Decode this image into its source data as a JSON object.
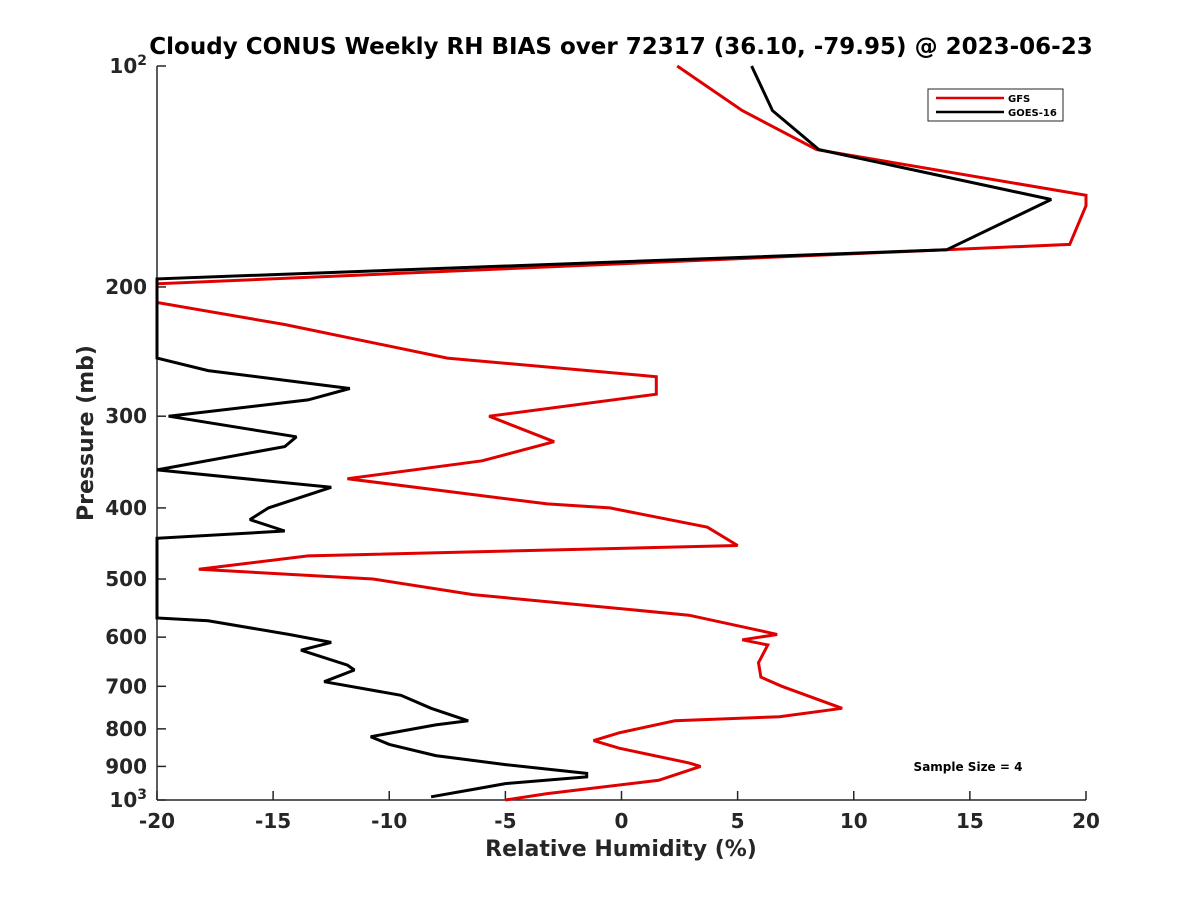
{
  "chart_data": {
    "type": "line",
    "title": "Cloudy CONUS Weekly RH BIAS over 72317 (36.10, -79.95) @ 2023-06-23",
    "xlabel": "Relative Humidity (%)",
    "ylabel": "Pressure (mb)",
    "xlim": [
      -20,
      20
    ],
    "ylim": [
      100,
      1000
    ],
    "y_scale": "log",
    "y_reversed": true,
    "grid": false,
    "x_ticks": [
      -20,
      -15,
      -10,
      -5,
      0,
      5,
      10,
      15,
      20
    ],
    "x_tick_labels": [
      "-20",
      "-15",
      "-10",
      "-5",
      "0",
      "5",
      "10",
      "15",
      "20"
    ],
    "y_ticks": [
      100,
      200,
      300,
      400,
      500,
      600,
      700,
      800,
      900,
      1000
    ],
    "y_tick_labels": [
      {
        "base": "10",
        "exp": "2"
      },
      {
        "base": "200",
        "exp": ""
      },
      {
        "base": "300",
        "exp": ""
      },
      {
        "base": "400",
        "exp": ""
      },
      {
        "base": "500",
        "exp": ""
      },
      {
        "base": "600",
        "exp": ""
      },
      {
        "base": "700",
        "exp": ""
      },
      {
        "base": "800",
        "exp": ""
      },
      {
        "base": "900",
        "exp": ""
      },
      {
        "base": "10",
        "exp": "3"
      }
    ],
    "legend_position": "top-right",
    "annotation": "Sample Size = 4",
    "series": [
      {
        "name": "GFS",
        "color": "#e00000",
        "points": [
          [
            2.4,
            100
          ],
          [
            5.2,
            115
          ],
          [
            8.4,
            130
          ],
          [
            20.0,
            150
          ],
          [
            20.0,
            155
          ],
          [
            19.3,
            175
          ],
          [
            -20.0,
            198
          ],
          [
            -20.0,
            210
          ],
          [
            -14.5,
            225
          ],
          [
            -7.5,
            250
          ],
          [
            1.5,
            265
          ],
          [
            1.5,
            280
          ],
          [
            -5.7,
            300
          ],
          [
            -2.9,
            325
          ],
          [
            -6.0,
            345
          ],
          [
            -11.8,
            365
          ],
          [
            -3.2,
            395
          ],
          [
            -0.5,
            400
          ],
          [
            3.7,
            425
          ],
          [
            5.0,
            450
          ],
          [
            -13.5,
            465
          ],
          [
            -18.2,
            485
          ],
          [
            -10.7,
            500
          ],
          [
            -6.4,
            525
          ],
          [
            2.9,
            560
          ],
          [
            6.2,
            590
          ],
          [
            6.7,
            595
          ],
          [
            5.2,
            605
          ],
          [
            6.3,
            615
          ],
          [
            5.9,
            650
          ],
          [
            6.0,
            680
          ],
          [
            6.9,
            700
          ],
          [
            9.5,
            750
          ],
          [
            6.8,
            770
          ],
          [
            2.3,
            780
          ],
          [
            -0.1,
            810
          ],
          [
            -1.2,
            830
          ],
          [
            -0.1,
            850
          ],
          [
            2.9,
            890
          ],
          [
            3.4,
            900
          ],
          [
            1.6,
            940
          ],
          [
            -3.2,
            980
          ],
          [
            -5.0,
            1000
          ]
        ]
      },
      {
        "name": "GOES-16",
        "color": "#000000",
        "points": [
          [
            5.6,
            100
          ],
          [
            6.5,
            115
          ],
          [
            8.5,
            130
          ],
          [
            18.5,
            152
          ],
          [
            14.0,
            178
          ],
          [
            -20.0,
            195
          ],
          [
            -20.0,
            250
          ],
          [
            -17.8,
            260
          ],
          [
            -11.7,
            275
          ],
          [
            -13.5,
            285
          ],
          [
            -19.5,
            300
          ],
          [
            -14.0,
            320
          ],
          [
            -14.5,
            330
          ],
          [
            -20.0,
            355
          ],
          [
            -12.5,
            375
          ],
          [
            -15.2,
            400
          ],
          [
            -16.0,
            415
          ],
          [
            -14.5,
            430
          ],
          [
            -20.0,
            440
          ],
          [
            -20.0,
            565
          ],
          [
            -17.8,
            570
          ],
          [
            -14.3,
            595
          ],
          [
            -12.5,
            610
          ],
          [
            -13.8,
            625
          ],
          [
            -11.8,
            655
          ],
          [
            -11.5,
            665
          ],
          [
            -12.8,
            690
          ],
          [
            -9.5,
            720
          ],
          [
            -8.2,
            750
          ],
          [
            -6.6,
            780
          ],
          [
            -8.0,
            790
          ],
          [
            -10.8,
            820
          ],
          [
            -10.0,
            840
          ],
          [
            -8.0,
            870
          ],
          [
            -5.0,
            895
          ],
          [
            -1.5,
            920
          ],
          [
            -1.5,
            930
          ],
          [
            -5.0,
            950
          ],
          [
            -6.2,
            965
          ],
          [
            -8.2,
            990
          ]
        ]
      }
    ]
  }
}
